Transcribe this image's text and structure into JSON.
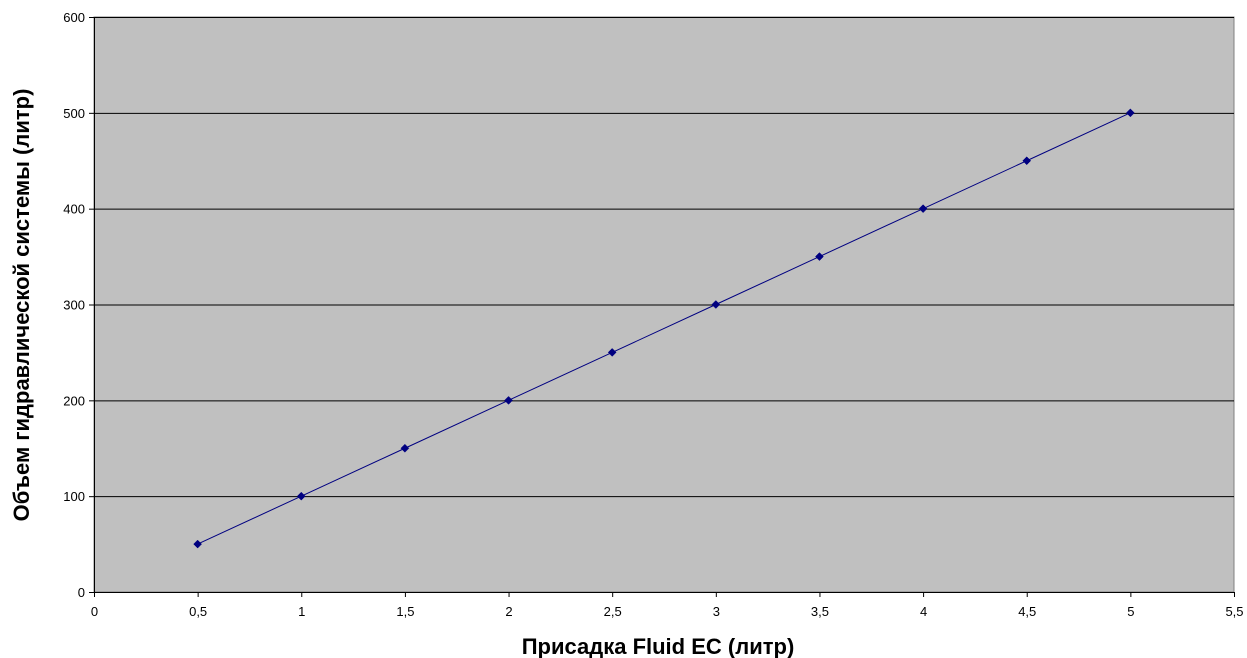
{
  "chart_data": {
    "type": "line",
    "title": "",
    "xlabel": "Присадка Fluid EC (литр)",
    "ylabel": "Объем гидравлической системы (литр)",
    "xlim": [
      0,
      5.5
    ],
    "ylim": [
      0,
      600
    ],
    "x_ticks": [
      0,
      0.5,
      1,
      1.5,
      2,
      2.5,
      3,
      3.5,
      4,
      4.5,
      5,
      5.5
    ],
    "x_tick_labels": [
      "0",
      "0,5",
      "1",
      "1,5",
      "2",
      "2,5",
      "3",
      "3,5",
      "4",
      "4,5",
      "5",
      "5,5"
    ],
    "y_ticks": [
      0,
      100,
      200,
      300,
      400,
      500,
      600
    ],
    "y_tick_labels": [
      "0",
      "100",
      "200",
      "300",
      "400",
      "500",
      "600"
    ],
    "grid": "horizontal",
    "legend": "none",
    "plot_background": "#c0c0c0",
    "series": [
      {
        "color": "#000080",
        "marker": "diamond",
        "x": [
          0.5,
          1,
          1.5,
          2,
          2.5,
          3,
          3.5,
          4,
          4.5,
          5
        ],
        "y": [
          50,
          100,
          150,
          200,
          250,
          300,
          350,
          400,
          450,
          500
        ]
      }
    ]
  }
}
